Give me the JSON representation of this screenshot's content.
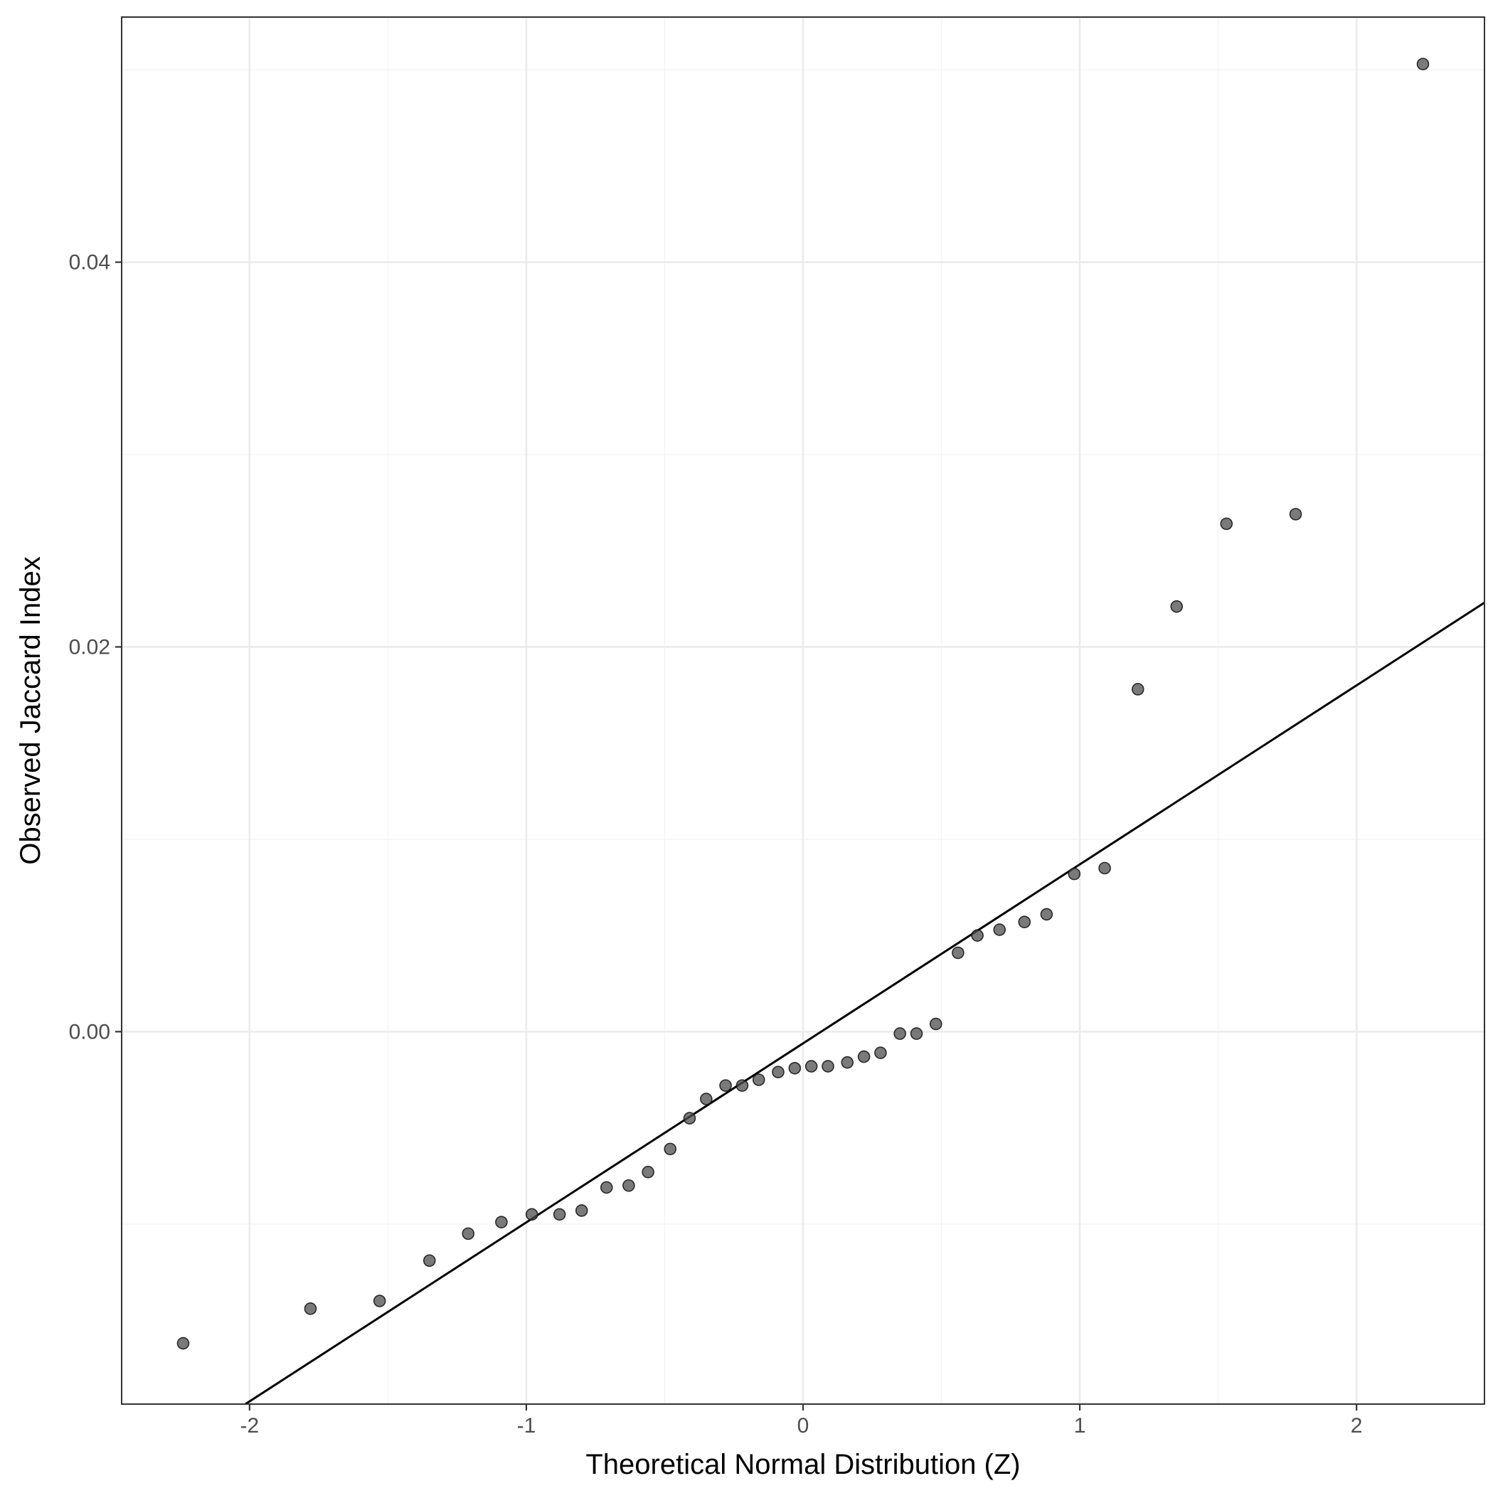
{
  "chart_data": {
    "type": "scatter",
    "title": "",
    "xlabel": "Theoretical Normal Distribution (Z)",
    "ylabel": "Observed Jaccard Index",
    "xlim": [
      -2.4623,
      2.4623
    ],
    "ylim": [
      -0.01936,
      0.05274
    ],
    "x_ticks": [
      -2,
      -1,
      0,
      1,
      2
    ],
    "x_tick_labels": [
      "-2",
      "-1",
      "0",
      "1",
      "2"
    ],
    "y_ticks": [
      0.0,
      0.02,
      0.04
    ],
    "y_tick_labels": [
      "0.00",
      "0.02",
      "0.04"
    ],
    "grid": true,
    "legend": "none",
    "points": {
      "x": [
        -2.24,
        -1.78,
        -1.53,
        -1.35,
        -1.21,
        -1.09,
        -0.98,
        -0.88,
        -0.8,
        -0.71,
        -0.63,
        -0.56,
        -0.48,
        -0.41,
        -0.35,
        -0.28,
        -0.22,
        -0.16,
        -0.09,
        -0.03,
        0.03,
        0.09,
        0.16,
        0.22,
        0.28,
        0.35,
        0.41,
        0.48,
        0.56,
        0.63,
        0.71,
        0.8,
        0.88,
        0.98,
        1.09,
        1.21,
        1.35,
        1.53,
        1.78,
        2.24
      ],
      "y": [
        -0.0162,
        -0.0144,
        -0.014,
        -0.0119,
        -0.0105,
        -0.0099,
        -0.0095,
        -0.0095,
        -0.0093,
        -0.0081,
        -0.008,
        -0.0073,
        -0.0061,
        -0.0045,
        -0.0035,
        -0.0028,
        -0.0028,
        -0.0025,
        -0.0021,
        -0.0019,
        -0.0018,
        -0.0018,
        -0.0016,
        -0.0013,
        -0.0011,
        -0.0001,
        -0.0001,
        0.0004,
        0.0041,
        0.005,
        0.0053,
        0.0057,
        0.0061,
        0.0082,
        0.0085,
        0.0178,
        0.0221,
        0.0264,
        0.0269,
        0.0503
      ],
      "color": "#4d4d4d",
      "opacity": 0.75
    },
    "reference_line": {
      "label": "",
      "x": [
        -2.4623,
        2.4623
      ],
      "y": [
        -0.02352,
        0.0223
      ],
      "color": "#000000"
    }
  },
  "colors": {
    "background": "#ffffff",
    "panel_border": "#333333",
    "grid_major": "#ebebeb",
    "grid_minor": "#f3f3f3",
    "tick_text": "#4d4d4d",
    "axis_title": "#000000"
  }
}
